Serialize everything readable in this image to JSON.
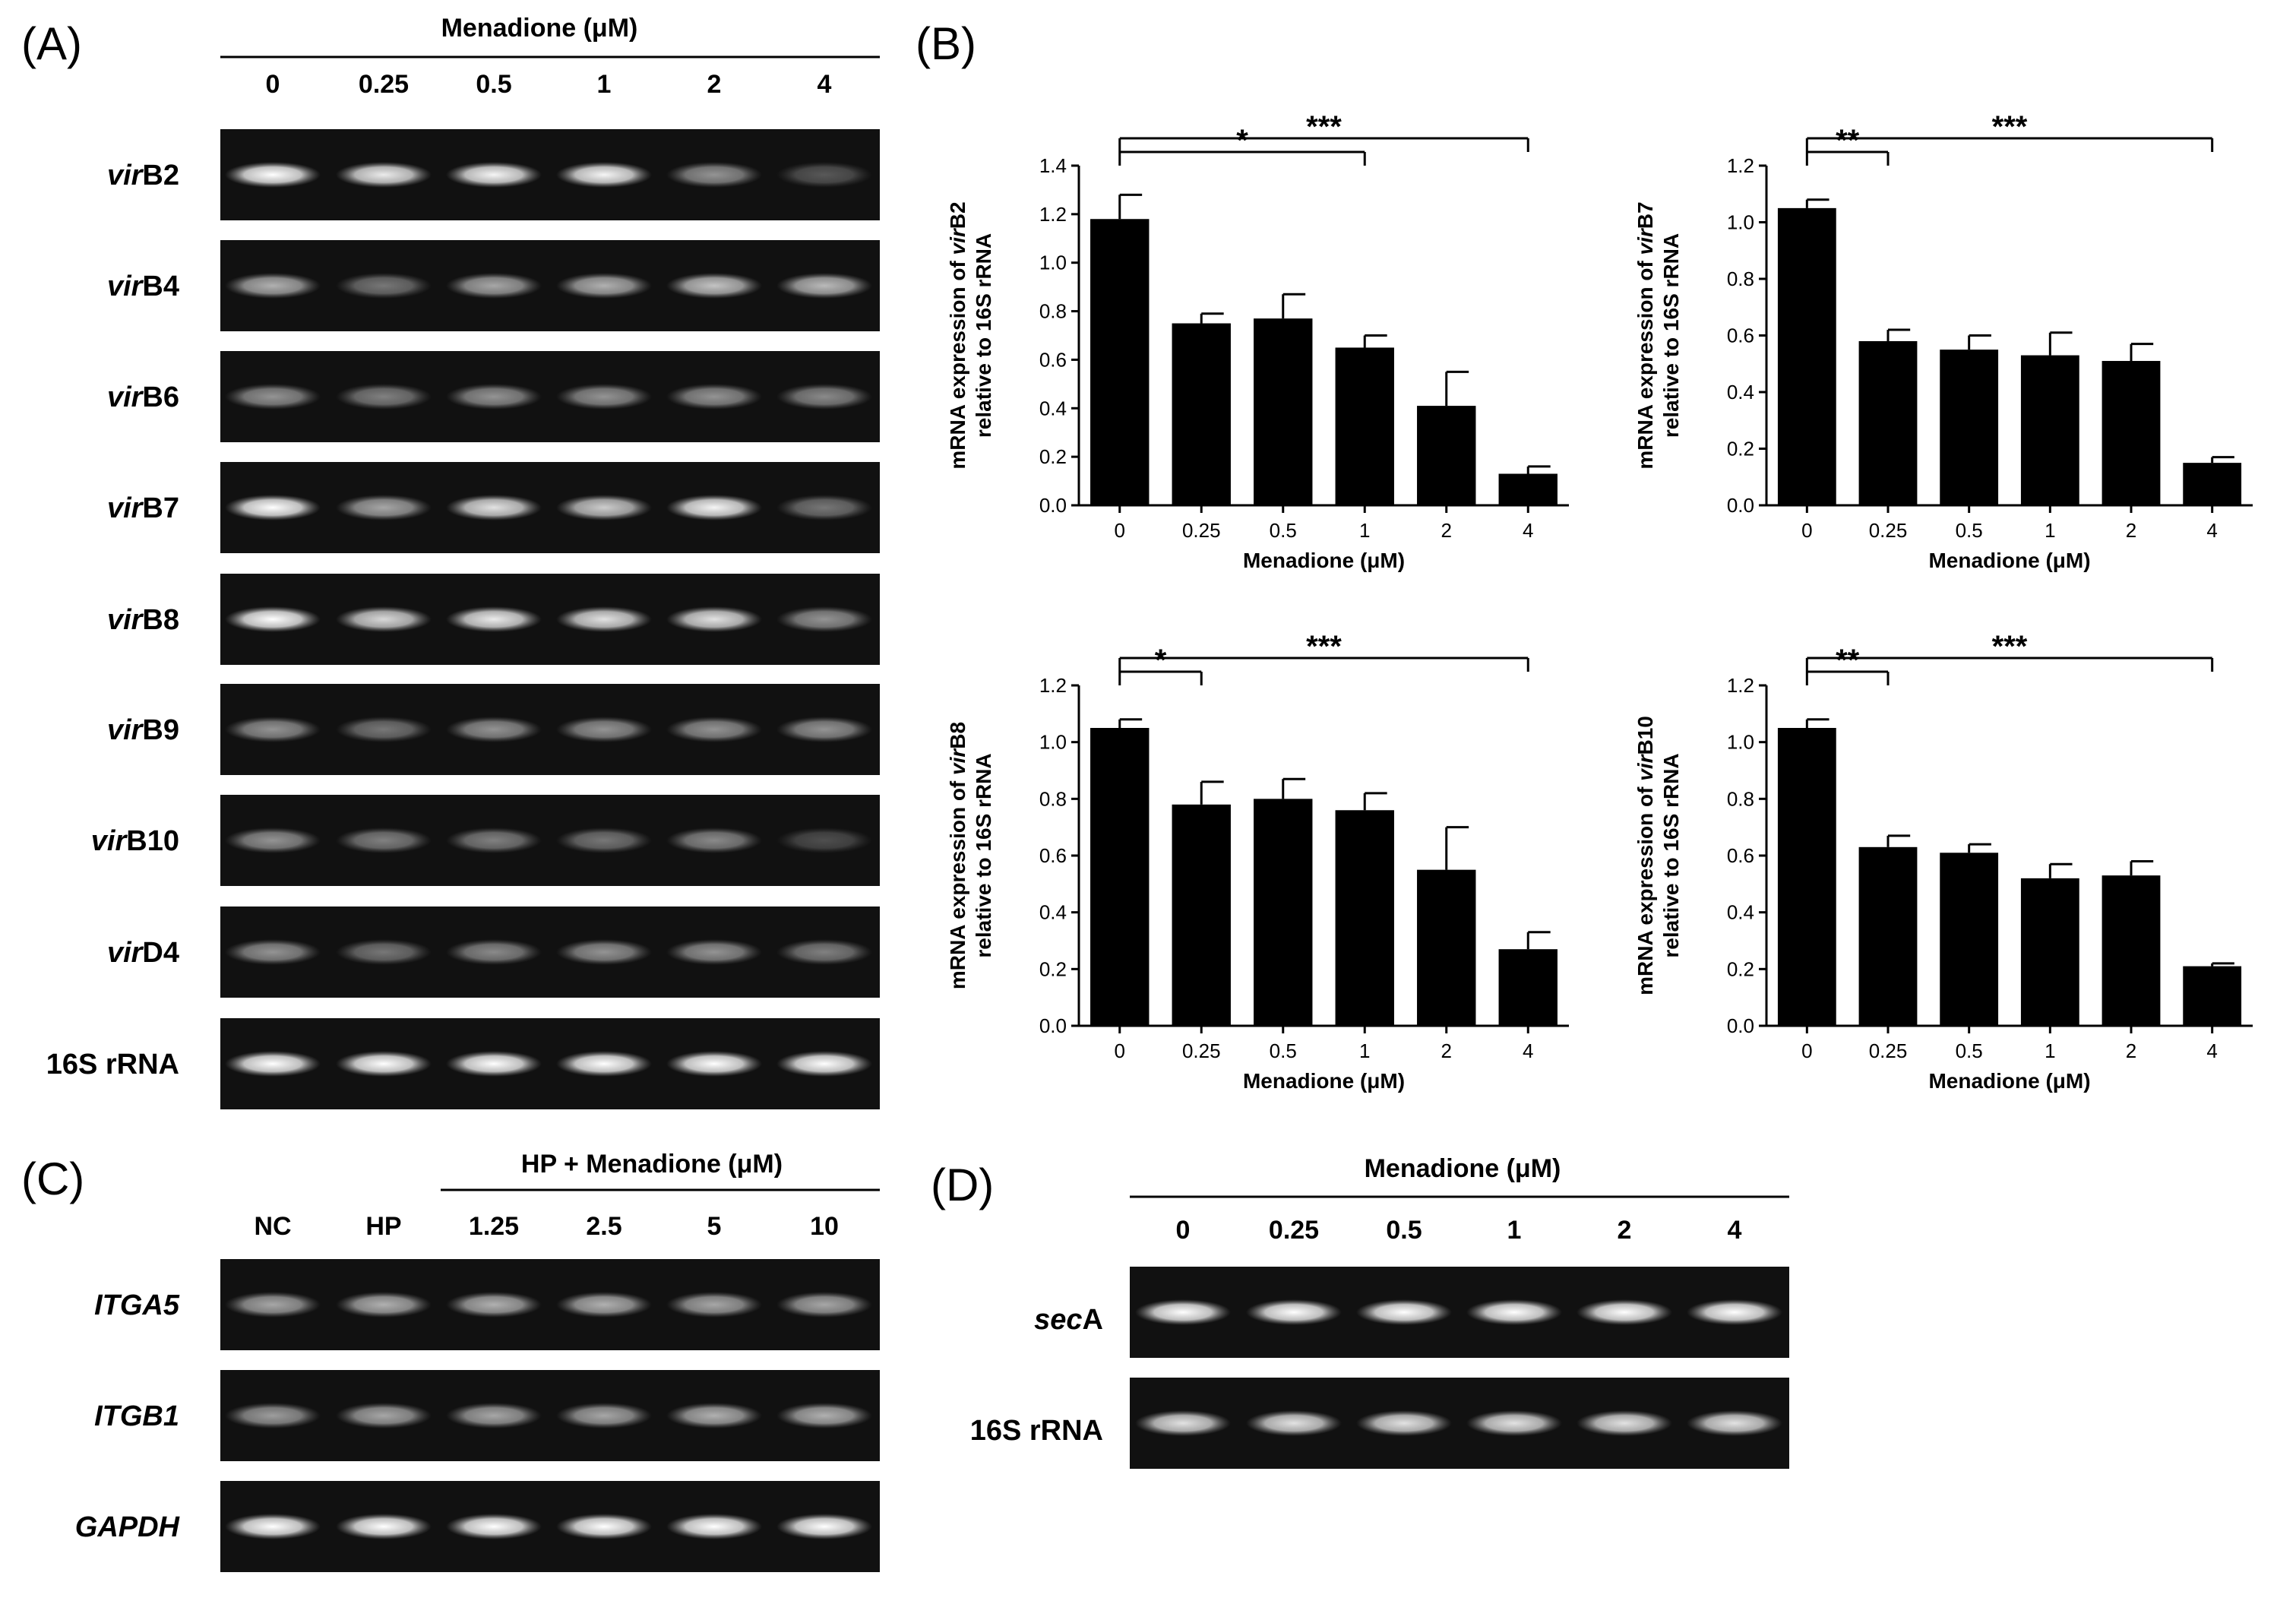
{
  "panels": {
    "A": {
      "letter": "(A)",
      "header": "Menadione (μM)",
      "lanes": [
        "0",
        "0.25",
        "0.5",
        "1",
        "2",
        "4"
      ],
      "rows": [
        {
          "label_italic": "vir",
          "label_rest": "B2",
          "intensity": [
            1.0,
            0.9,
            0.95,
            0.95,
            0.45,
            0.15
          ]
        },
        {
          "label_italic": "vir",
          "label_rest": "B4",
          "intensity": [
            0.6,
            0.3,
            0.55,
            0.6,
            0.7,
            0.65
          ]
        },
        {
          "label_italic": "vir",
          "label_rest": "B6",
          "intensity": [
            0.45,
            0.35,
            0.45,
            0.45,
            0.45,
            0.4
          ]
        },
        {
          "label_italic": "vir",
          "label_rest": "B7",
          "intensity": [
            1.0,
            0.55,
            0.85,
            0.75,
            0.95,
            0.3
          ]
        },
        {
          "label_italic": "vir",
          "label_rest": "B8",
          "intensity": [
            1.0,
            0.8,
            0.9,
            0.85,
            0.85,
            0.45
          ]
        },
        {
          "label_italic": "vir",
          "label_rest": "B9",
          "intensity": [
            0.45,
            0.3,
            0.45,
            0.45,
            0.45,
            0.45
          ]
        },
        {
          "label_italic": "vir",
          "label_rest": "B10",
          "intensity": [
            0.45,
            0.35,
            0.35,
            0.3,
            0.4,
            0.1
          ]
        },
        {
          "label_italic": "vir",
          "label_rest": "D4",
          "intensity": [
            0.45,
            0.3,
            0.4,
            0.45,
            0.45,
            0.35
          ]
        },
        {
          "label_italic": "",
          "label_rest": "16S rRNA",
          "intensity": [
            1.0,
            1.0,
            1.0,
            1.0,
            1.0,
            1.0
          ]
        }
      ]
    },
    "B": {
      "letter": "(B)"
    },
    "C": {
      "letter": "(C)",
      "header": "HP + Menadione (μM)",
      "lanes": [
        "NC",
        "HP",
        "1.25",
        "2.5",
        "5",
        "10"
      ],
      "rows": [
        {
          "label": "ITGA5",
          "italic": true,
          "intensity": [
            0.55,
            0.6,
            0.6,
            0.6,
            0.55,
            0.55
          ]
        },
        {
          "label": "ITGB1",
          "italic": true,
          "intensity": [
            0.5,
            0.55,
            0.55,
            0.55,
            0.6,
            0.6
          ]
        },
        {
          "label": "GAPDH",
          "italic": true,
          "intensity": [
            1.0,
            1.0,
            1.0,
            1.0,
            1.0,
            1.0
          ]
        }
      ]
    },
    "D": {
      "letter": "(D)",
      "header": "Menadione (μM)",
      "lanes": [
        "0",
        "0.25",
        "0.5",
        "1",
        "2",
        "4"
      ],
      "rows": [
        {
          "label_italic": "sec",
          "label_rest": "A",
          "intensity": [
            1.0,
            1.0,
            1.0,
            1.0,
            1.0,
            1.0
          ]
        },
        {
          "label_italic": "",
          "label_rest": "16S rRNA",
          "intensity": [
            0.85,
            0.85,
            0.85,
            0.85,
            0.85,
            0.85
          ]
        }
      ]
    }
  },
  "chart_data": [
    {
      "type": "bar",
      "gene_italic": "vir",
      "gene_rest": "B2",
      "ylabel_line1_pre": "mRNA expression of ",
      "ylabel_line2": "relative to 16S rRNA",
      "xlabel": "Menadione (μM)",
      "categories": [
        "0",
        "0.25",
        "0.5",
        "1",
        "2",
        "4"
      ],
      "values": [
        1.18,
        0.75,
        0.77,
        0.65,
        0.41,
        0.13
      ],
      "errors": [
        0.1,
        0.04,
        0.1,
        0.05,
        0.14,
        0.03
      ],
      "ylim": [
        0,
        1.4
      ],
      "yticks": [
        "0.0",
        "0.2",
        "0.4",
        "0.6",
        "0.8",
        "1.0",
        "1.2",
        "1.4"
      ],
      "significance": [
        {
          "from": 0,
          "to": 3,
          "label": "*"
        },
        {
          "from": 0,
          "to": 5,
          "label": "***"
        }
      ]
    },
    {
      "type": "bar",
      "gene_italic": "vir",
      "gene_rest": "B7",
      "ylabel_line1_pre": "mRNA expression of ",
      "ylabel_line2": "relative to 16S rRNA",
      "xlabel": "Menadione (μM)",
      "categories": [
        "0",
        "0.25",
        "0.5",
        "1",
        "2",
        "4"
      ],
      "values": [
        1.05,
        0.58,
        0.55,
        0.53,
        0.51,
        0.15
      ],
      "errors": [
        0.03,
        0.04,
        0.05,
        0.08,
        0.06,
        0.02
      ],
      "ylim": [
        0,
        1.2
      ],
      "yticks": [
        "0.0",
        "0.2",
        "0.4",
        "0.6",
        "0.8",
        "1.0",
        "1.2"
      ],
      "significance": [
        {
          "from": 0,
          "to": 1,
          "label": "**"
        },
        {
          "from": 0,
          "to": 5,
          "label": "***"
        }
      ]
    },
    {
      "type": "bar",
      "gene_italic": "vir",
      "gene_rest": "B8",
      "ylabel_line1_pre": "mRNA expression of ",
      "ylabel_line2": "relative to 16S rRNA",
      "xlabel": "Menadione (μM)",
      "categories": [
        "0",
        "0.25",
        "0.5",
        "1",
        "2",
        "4"
      ],
      "values": [
        1.05,
        0.78,
        0.8,
        0.76,
        0.55,
        0.27
      ],
      "errors": [
        0.03,
        0.08,
        0.07,
        0.06,
        0.15,
        0.06
      ],
      "ylim": [
        0,
        1.2
      ],
      "yticks": [
        "0.0",
        "0.2",
        "0.4",
        "0.6",
        "0.8",
        "1.0",
        "1.2"
      ],
      "significance": [
        {
          "from": 0,
          "to": 1,
          "label": "*"
        },
        {
          "from": 0,
          "to": 5,
          "label": "***"
        }
      ]
    },
    {
      "type": "bar",
      "gene_italic": "vir",
      "gene_rest": "B10",
      "ylabel_line1_pre": "mRNA expression of ",
      "ylabel_line2": "relative to 16S rRNA",
      "xlabel": "Menadione (μM)",
      "categories": [
        "0",
        "0.25",
        "0.5",
        "1",
        "2",
        "4"
      ],
      "values": [
        1.05,
        0.63,
        0.61,
        0.52,
        0.53,
        0.21
      ],
      "errors": [
        0.03,
        0.04,
        0.03,
        0.05,
        0.05,
        0.01
      ],
      "ylim": [
        0,
        1.2
      ],
      "yticks": [
        "0.0",
        "0.2",
        "0.4",
        "0.6",
        "0.8",
        "1.0",
        "1.2"
      ],
      "significance": [
        {
          "from": 0,
          "to": 1,
          "label": "**"
        },
        {
          "from": 0,
          "to": 5,
          "label": "***"
        }
      ]
    }
  ]
}
